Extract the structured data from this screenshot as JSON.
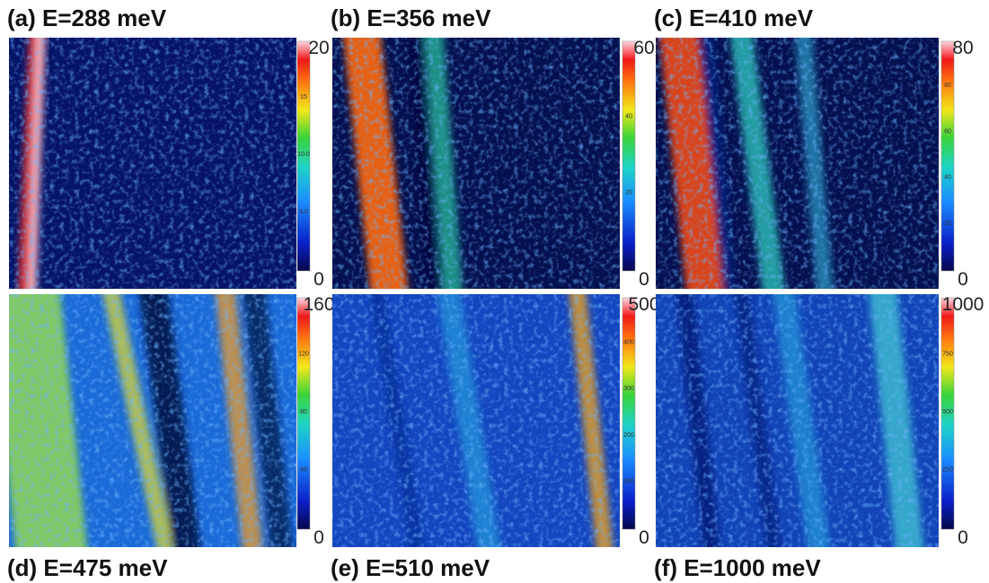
{
  "panels": [
    {
      "label": "(a) E=288 meV",
      "cbar_max": "20",
      "cbar_min": "0",
      "cbar_ticks": [
        "15",
        "10.0",
        "5.0"
      ]
    },
    {
      "label": "(b) E=356 meV",
      "cbar_max": "60",
      "cbar_min": "0",
      "cbar_ticks": [
        "40",
        "20"
      ]
    },
    {
      "label": "(c) E=410 meV",
      "cbar_max": "80",
      "cbar_min": "0",
      "cbar_ticks": [
        "80",
        "60",
        "40",
        "20"
      ]
    },
    {
      "label": "(d) E=475 meV",
      "cbar_max": "160",
      "cbar_min": "0",
      "cbar_ticks": [
        "120",
        "80",
        "40"
      ]
    },
    {
      "label": "(e) E=510 meV",
      "cbar_max": "500",
      "cbar_min": "0",
      "cbar_ticks": [
        "400",
        "300",
        "200",
        "100"
      ]
    },
    {
      "label": "(f) E=1000 meV",
      "cbar_max": "1000",
      "cbar_min": "0",
      "cbar_ticks": [
        "750",
        "500",
        "250"
      ]
    }
  ]
}
